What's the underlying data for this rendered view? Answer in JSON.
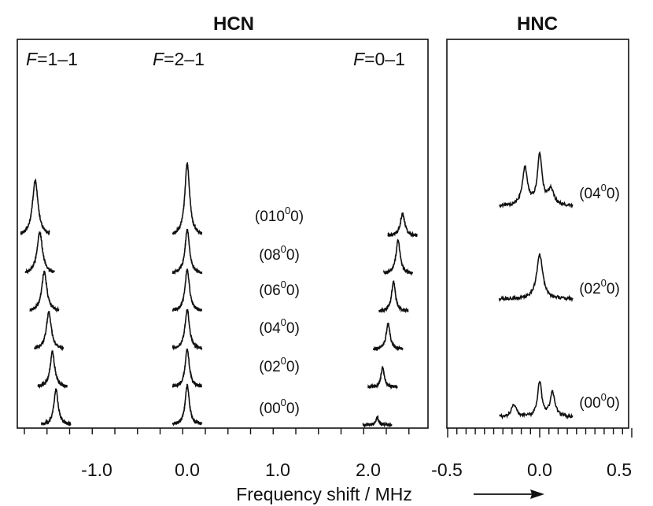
{
  "chart_data": [
    {
      "type": "line",
      "title": "HCN",
      "x_ticks": [
        "-1.0",
        "0.0",
        "1.0",
        "2.0"
      ],
      "xlim": [
        -1.85,
        2.62
      ],
      "hyperfine_labels": [
        {
          "italic": "F",
          "rest": "=1–1"
        },
        {
          "italic": "F",
          "rest": "=2–1"
        },
        {
          "italic": "F",
          "rest": "=0–1"
        }
      ],
      "spectra": [
        {
          "state": {
            "pre": "(00",
            "sup": "0",
            "post": "0)"
          },
          "baseline": 0,
          "centers": [
            -1.45,
            0.0,
            2.1
          ],
          "heights": [
            1.6,
            1.8,
            0.35
          ],
          "widths": [
            0.028,
            0.028,
            0.02
          ]
        },
        {
          "state": {
            "pre": "(02",
            "sup": "0",
            "post": "0)"
          },
          "baseline": 1,
          "centers": [
            -1.49,
            0.0,
            2.16
          ],
          "heights": [
            1.6,
            1.7,
            0.9
          ],
          "widths": [
            0.03,
            0.028,
            0.022
          ]
        },
        {
          "state": {
            "pre": "(04",
            "sup": "0",
            "post": "0)"
          },
          "baseline": 2,
          "centers": [
            -1.53,
            0.0,
            2.22
          ],
          "heights": [
            1.7,
            1.8,
            1.2
          ],
          "widths": [
            0.032,
            0.03,
            0.025
          ]
        },
        {
          "state": {
            "pre": "(06",
            "sup": "0",
            "post": "0)"
          },
          "baseline": 3,
          "centers": [
            -1.58,
            0.0,
            2.28
          ],
          "heights": [
            1.8,
            1.9,
            1.35
          ],
          "widths": [
            0.034,
            0.03,
            0.026
          ]
        },
        {
          "state": {
            "pre": "(08",
            "sup": "0",
            "post": "0)"
          },
          "baseline": 4,
          "centers": [
            -1.63,
            0.0,
            2.33
          ],
          "heights": [
            1.9,
            2.0,
            1.5
          ],
          "widths": [
            0.036,
            0.03,
            0.028
          ]
        },
        {
          "state": {
            "pre": "(010",
            "sup": "0",
            "post": "0)"
          },
          "baseline": 5,
          "centers": [
            -1.68,
            0.0,
            2.38
          ],
          "heights": [
            2.5,
            3.3,
            1.0
          ],
          "widths": [
            0.038,
            0.032,
            0.03
          ]
        }
      ]
    },
    {
      "type": "line",
      "title": "HNC",
      "x_ticks": [
        "-0.5",
        "0.0",
        "0.5"
      ],
      "xlim": [
        -0.5,
        0.5
      ],
      "spectra": [
        {
          "state": {
            "pre": "(00",
            "sup": "0",
            "post": "0)"
          },
          "baseline": 0,
          "centers": [
            -0.14,
            0.0,
            0.07
          ],
          "heights": [
            0.55,
            1.6,
            1.1
          ],
          "widths": [
            0.016,
            0.013,
            0.016
          ]
        },
        {
          "state": {
            "pre": "(02",
            "sup": "0",
            "post": "0)"
          },
          "baseline": 1,
          "centers": [
            0.0
          ],
          "heights": [
            2.0
          ],
          "widths": [
            0.02
          ]
        },
        {
          "state": {
            "pre": "(04",
            "sup": "0",
            "post": "0)"
          },
          "baseline": 2,
          "centers": [
            -0.08,
            0.0,
            0.06
          ],
          "heights": [
            1.7,
            2.3,
            0.7
          ],
          "widths": [
            0.017,
            0.015,
            0.02
          ]
        }
      ]
    }
  ],
  "x_axis_label": "Frequency shift / MHz"
}
